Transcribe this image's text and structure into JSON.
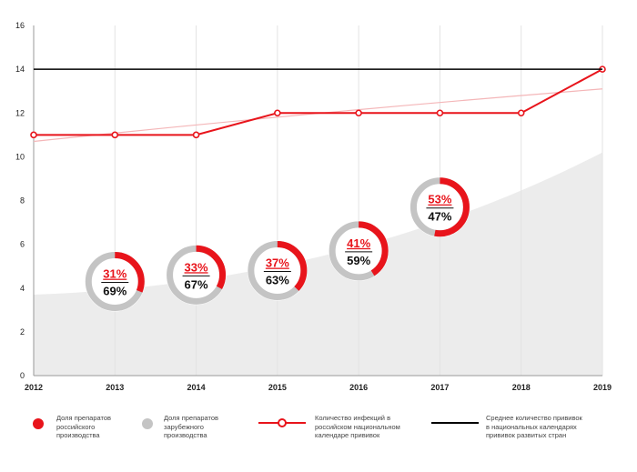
{
  "chart_data": {
    "type": "line",
    "title": "",
    "xlabel": "",
    "ylabel": "",
    "ylim": [
      0,
      16
    ],
    "y_ticks": [
      "0",
      "2",
      "4",
      "6",
      "8",
      "10",
      "12",
      "14",
      "16"
    ],
    "categories": [
      "2012",
      "2013",
      "2014",
      "2015",
      "2016",
      "2017",
      "2018",
      "2019"
    ],
    "grid": "vertical",
    "series": [
      {
        "name": "Количество инфекций в российском национальном календаре прививок",
        "kind": "line-with-markers",
        "color": "#e8141b",
        "values": [
          11,
          11,
          11,
          12,
          12,
          12,
          12,
          14
        ]
      },
      {
        "name": "Среднее количество прививок в национальных календарях прививок развитых стран",
        "kind": "horizontal-line",
        "color": "#000000",
        "values": [
          14,
          14,
          14,
          14,
          14,
          14,
          14,
          14
        ]
      }
    ],
    "trend_line": {
      "color": "#f4b6b8",
      "start": 10.7,
      "end": 13.1
    },
    "background_area": {
      "color": "#ececec",
      "start": 3.7,
      "end": 10.2
    },
    "donuts": [
      {
        "x": "2013",
        "y": 4.3,
        "domestic": 31,
        "foreign": 69,
        "domestic_label": "31%",
        "foreign_label": "69%"
      },
      {
        "x": "2014",
        "y": 4.6,
        "domestic": 33,
        "foreign": 67,
        "domestic_label": "33%",
        "foreign_label": "67%"
      },
      {
        "x": "2015",
        "y": 4.8,
        "domestic": 37,
        "foreign": 63,
        "domestic_label": "37%",
        "foreign_label": "63%"
      },
      {
        "x": "2016",
        "y": 5.7,
        "domestic": 41,
        "foreign": 59,
        "domestic_label": "41%",
        "foreign_label": "59%"
      },
      {
        "x": "2017",
        "y": 7.7,
        "domestic": 53,
        "foreign": 47,
        "domestic_label": "53%",
        "foreign_label": "47%"
      }
    ],
    "colors": {
      "domestic": "#e8141b",
      "foreign": "#c4c4c4",
      "line": "#e8141b",
      "benchmark": "#000000"
    },
    "legend_position": "bottom"
  },
  "legend": [
    {
      "kind": "dot",
      "color": "#e8141b",
      "text": "Доля препаратов\nроссийского\nпроизводства"
    },
    {
      "kind": "dot",
      "color": "#c4c4c4",
      "text": "Доля препаратов\nзарубежного\nпроизводства"
    },
    {
      "kind": "marker-line",
      "color": "#e8141b",
      "text": "Количество инфекций в\nроссийском национальном\nкалендаре прививок"
    },
    {
      "kind": "line",
      "color": "#000000",
      "text": "Среднее количество прививок\nв национальных календарях\nпрививок развитых стран"
    }
  ]
}
